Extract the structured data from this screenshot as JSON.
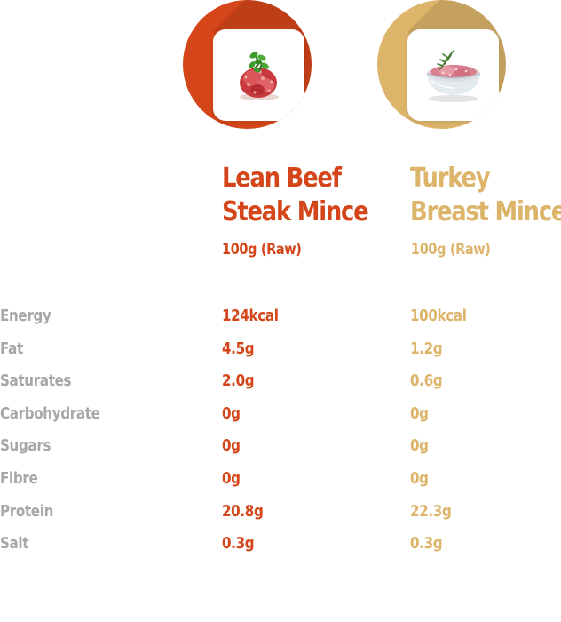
{
  "colors": {
    "beef": "#d44619",
    "turkey": "#dcb46a",
    "label": "#a7a7a7"
  },
  "products": [
    {
      "name_line1": "Lean Beef",
      "name_line2": "Steak Mince",
      "serving": "100g (Raw)",
      "image": "beef-mince-icon"
    },
    {
      "name_line1": "Turkey",
      "name_line2": "Breast Mince",
      "serving": "100g (Raw)",
      "image": "turkey-mince-bowl-icon"
    }
  ],
  "nutrients": [
    {
      "label": "Energy",
      "beef": "124kcal",
      "turkey": "100kcal"
    },
    {
      "label": "Fat",
      "beef": "4.5g",
      "turkey": "1.2g"
    },
    {
      "label": "Saturates",
      "beef": "2.0g",
      "turkey": "0.6g"
    },
    {
      "label": "Carbohydrate",
      "beef": "0g",
      "turkey": "0g"
    },
    {
      "label": "Sugars",
      "beef": "0g",
      "turkey": "0g"
    },
    {
      "label": "Fibre",
      "beef": "0g",
      "turkey": "0g"
    },
    {
      "label": "Protein",
      "beef": "20.8g",
      "turkey": "22.3g"
    },
    {
      "label": "Salt",
      "beef": "0.3g",
      "turkey": "0.3g"
    }
  ]
}
